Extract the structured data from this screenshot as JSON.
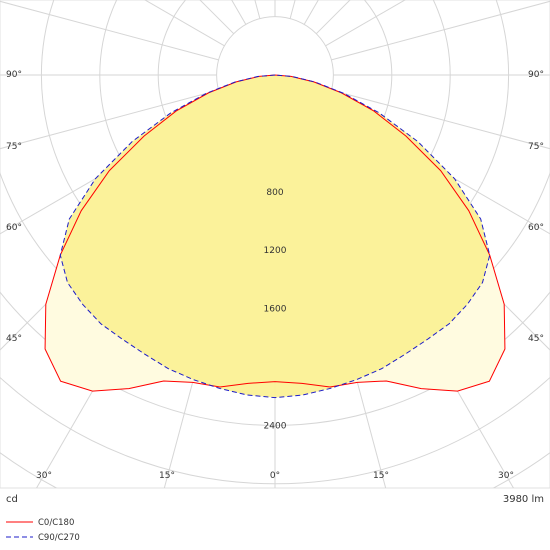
{
  "chart_data": {
    "type": "polar",
    "units_label": "cd",
    "flux_label": "3980 lm",
    "radial_ticks": [
      "800",
      "1200",
      "1600",
      "2400"
    ],
    "angle_ticks_top": [
      "90°",
      "75°",
      "60°",
      "45°"
    ],
    "angle_ticks_bottom": [
      "30°",
      "15°",
      "0°",
      "15°",
      "30°"
    ],
    "series": [
      {
        "name": "C0/C180",
        "color": "#ff0000",
        "dash": false,
        "angles_deg": [
          0,
          5,
          10,
          15,
          20,
          25,
          30,
          35,
          40,
          45,
          50,
          55,
          60,
          65,
          70,
          75,
          80,
          85,
          90
        ],
        "intensity_cd": [
          2100,
          2120,
          2170,
          2180,
          2230,
          2370,
          2500,
          2560,
          2450,
          2220,
          1920,
          1620,
          1310,
          990,
          720,
          470,
          270,
          110,
          0
        ]
      },
      {
        "name": "C90/C270",
        "color": "#1c1cc8",
        "dash": true,
        "angles_deg": [
          0,
          5,
          10,
          15,
          20,
          25,
          30,
          35,
          40,
          45,
          50,
          55,
          60,
          65,
          70,
          75,
          80,
          85,
          90
        ],
        "intensity_cd": [
          2210,
          2200,
          2180,
          2160,
          2140,
          2110,
          2090,
          2080,
          2050,
          2010,
          1920,
          1720,
          1420,
          1080,
          760,
          490,
          280,
          120,
          0
        ]
      }
    ]
  }
}
